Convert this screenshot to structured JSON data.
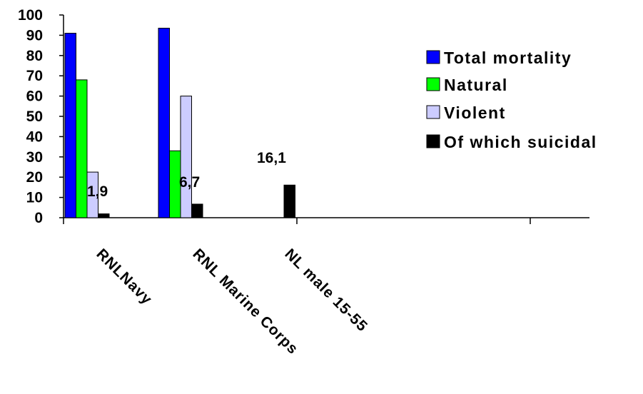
{
  "chart_data": {
    "type": "bar",
    "categories": [
      "RNLNavy",
      "RNL Marine Corps",
      "NL male 15-55"
    ],
    "series": [
      {
        "name": "Total mortality",
        "color": "#0000ff",
        "values": [
          91,
          93.5,
          null
        ]
      },
      {
        "name": "Natural",
        "color": "#00ff00",
        "values": [
          68,
          33,
          null
        ]
      },
      {
        "name": "Violent",
        "color": "#ccccff",
        "values": [
          22.5,
          60,
          null
        ]
      },
      {
        "name": "Of which suicidal",
        "color": "#000000",
        "values": [
          1.9,
          6.7,
          16.1
        ]
      }
    ],
    "data_labels": [
      "1,9",
      "6,7",
      "16,1"
    ],
    "ylim": [
      0,
      100
    ],
    "yticks": [
      "0",
      "10",
      "20",
      "30",
      "40",
      "50",
      "60",
      "70",
      "80",
      "90",
      "100"
    ],
    "legend_position": "right",
    "grid": false,
    "title": "",
    "xlabel": "",
    "ylabel": ""
  }
}
